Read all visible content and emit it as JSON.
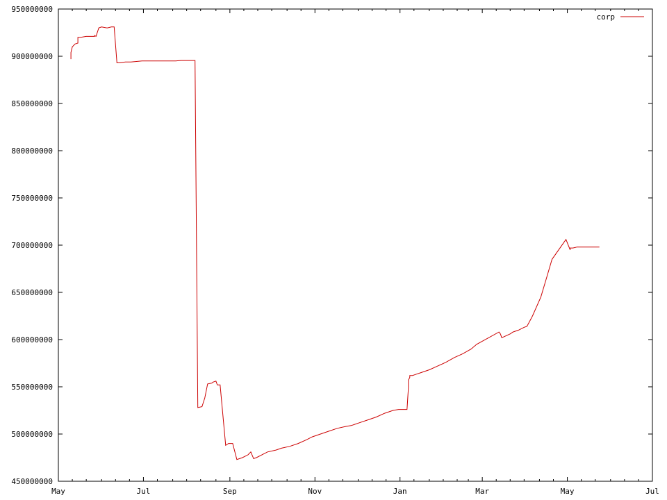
{
  "chart_data": {
    "type": "line",
    "title": "",
    "xlabel": "",
    "ylabel": "",
    "x_unit": "days since start of May",
    "xlim": [
      0,
      426
    ],
    "ylim": [
      450000000,
      950000000
    ],
    "y_ticks": [
      450000000,
      500000000,
      550000000,
      600000000,
      650000000,
      700000000,
      750000000,
      800000000,
      850000000,
      900000000,
      950000000
    ],
    "y_tick_labels": [
      "450000000",
      "500000000",
      "550000000",
      "600000000",
      "650000000",
      "700000000",
      "750000000",
      "800000000",
      "850000000",
      "900000000",
      "950000000"
    ],
    "x_ticks": [
      0,
      61,
      123,
      184,
      245,
      304,
      365,
      426
    ],
    "x_tick_labels": [
      "May",
      "Jul",
      "Sep",
      "Nov",
      "Jan",
      "Mar",
      "May",
      "Jul"
    ],
    "minor_x_ticks": [
      10,
      20,
      31,
      41,
      51,
      71,
      82,
      92,
      102,
      113,
      133,
      143,
      153,
      164,
      174,
      194,
      204,
      215,
      225,
      235,
      255,
      266,
      276,
      286,
      294,
      314,
      324,
      334,
      345,
      355,
      375,
      385,
      396,
      406,
      416
    ],
    "legend": {
      "position": "top-right",
      "entries": [
        "corp"
      ]
    },
    "series": [
      {
        "name": "corp",
        "color": "#cc0000",
        "x": [
          9,
          9,
          10,
          12,
          14,
          14,
          16,
          20,
          26,
          26,
          27,
          29,
          31,
          35,
          38,
          38,
          40,
          42,
          44,
          48,
          52,
          56,
          60,
          64,
          66,
          70,
          74,
          80,
          84,
          88,
          92,
          94,
          98,
          94,
          98,
          100,
          100,
          103,
          103,
          105,
          105,
          107,
          107,
          110,
          110,
          111,
          111,
          113,
          113,
          114,
          114,
          115,
          115,
          116,
          116,
          120,
          120,
          122,
          125,
          128,
          132,
          136,
          136,
          138,
          138,
          140,
          140,
          142,
          142,
          146,
          146,
          150,
          150,
          156,
          160,
          166,
          172,
          178,
          182,
          188,
          194,
          200,
          206,
          210,
          216,
          222,
          228,
          234,
          240,
          244,
          246,
          250,
          251,
          251,
          252,
          252,
          254,
          256,
          260,
          266,
          272,
          278,
          284,
          290,
          296,
          300,
          316,
          317,
          317,
          318,
          318,
          324,
          326,
          330,
          334,
          336,
          340,
          346,
          350,
          354,
          364,
          367,
          367,
          369,
          372,
          375,
          378,
          380,
          384,
          388
        ],
        "values": [
          897000000,
          904000000,
          910000000,
          913000000,
          914000000,
          920000000,
          920000000,
          921000000,
          921000000,
          922000000,
          921000000,
          930000000,
          931000000,
          930000000,
          931000000,
          931000000,
          931000000,
          893000000,
          893000000,
          894000000,
          894000000,
          894500000,
          895000000,
          895000000,
          895000000,
          895000000,
          895000000,
          895000000,
          895000000,
          895500000,
          895500000,
          895500000,
          895500000,
          895500000,
          895500000,
          528000000,
          528000000,
          529000000,
          529000000,
          538000000,
          538000000,
          553000000,
          553000000,
          554000000,
          554000000,
          555000000,
          555000000,
          556000000,
          556000000,
          552000000,
          552000000,
          552000000,
          552000000,
          552000000,
          552000000,
          488000000,
          488000000,
          490000000,
          490000000,
          473000000,
          475000000,
          478000000,
          478000000,
          481000000,
          481000000,
          474000000,
          474000000,
          475000000,
          475000000,
          478000000,
          478000000,
          481000000,
          481000000,
          483000000,
          485000000,
          487000000,
          490000000,
          494000000,
          497000000,
          500000000,
          503000000,
          506000000,
          508000000,
          509000000,
          512000000,
          515000000,
          518000000,
          522000000,
          525000000,
          526000000,
          526000000,
          526000000,
          549000000,
          557000000,
          560000000,
          562000000,
          562000000,
          563000000,
          565000000,
          568000000,
          572000000,
          576000000,
          581000000,
          585000000,
          590000000,
          595000000,
          608000000,
          606000000,
          606000000,
          602000000,
          602000000,
          606000000,
          608000000,
          610000000,
          613000000,
          614000000,
          625000000,
          645000000,
          665000000,
          685000000,
          706000000,
          695000000,
          697000000,
          697000000,
          698000000,
          698000000,
          698000000,
          698000000,
          698000000,
          698000000
        ]
      }
    ]
  }
}
